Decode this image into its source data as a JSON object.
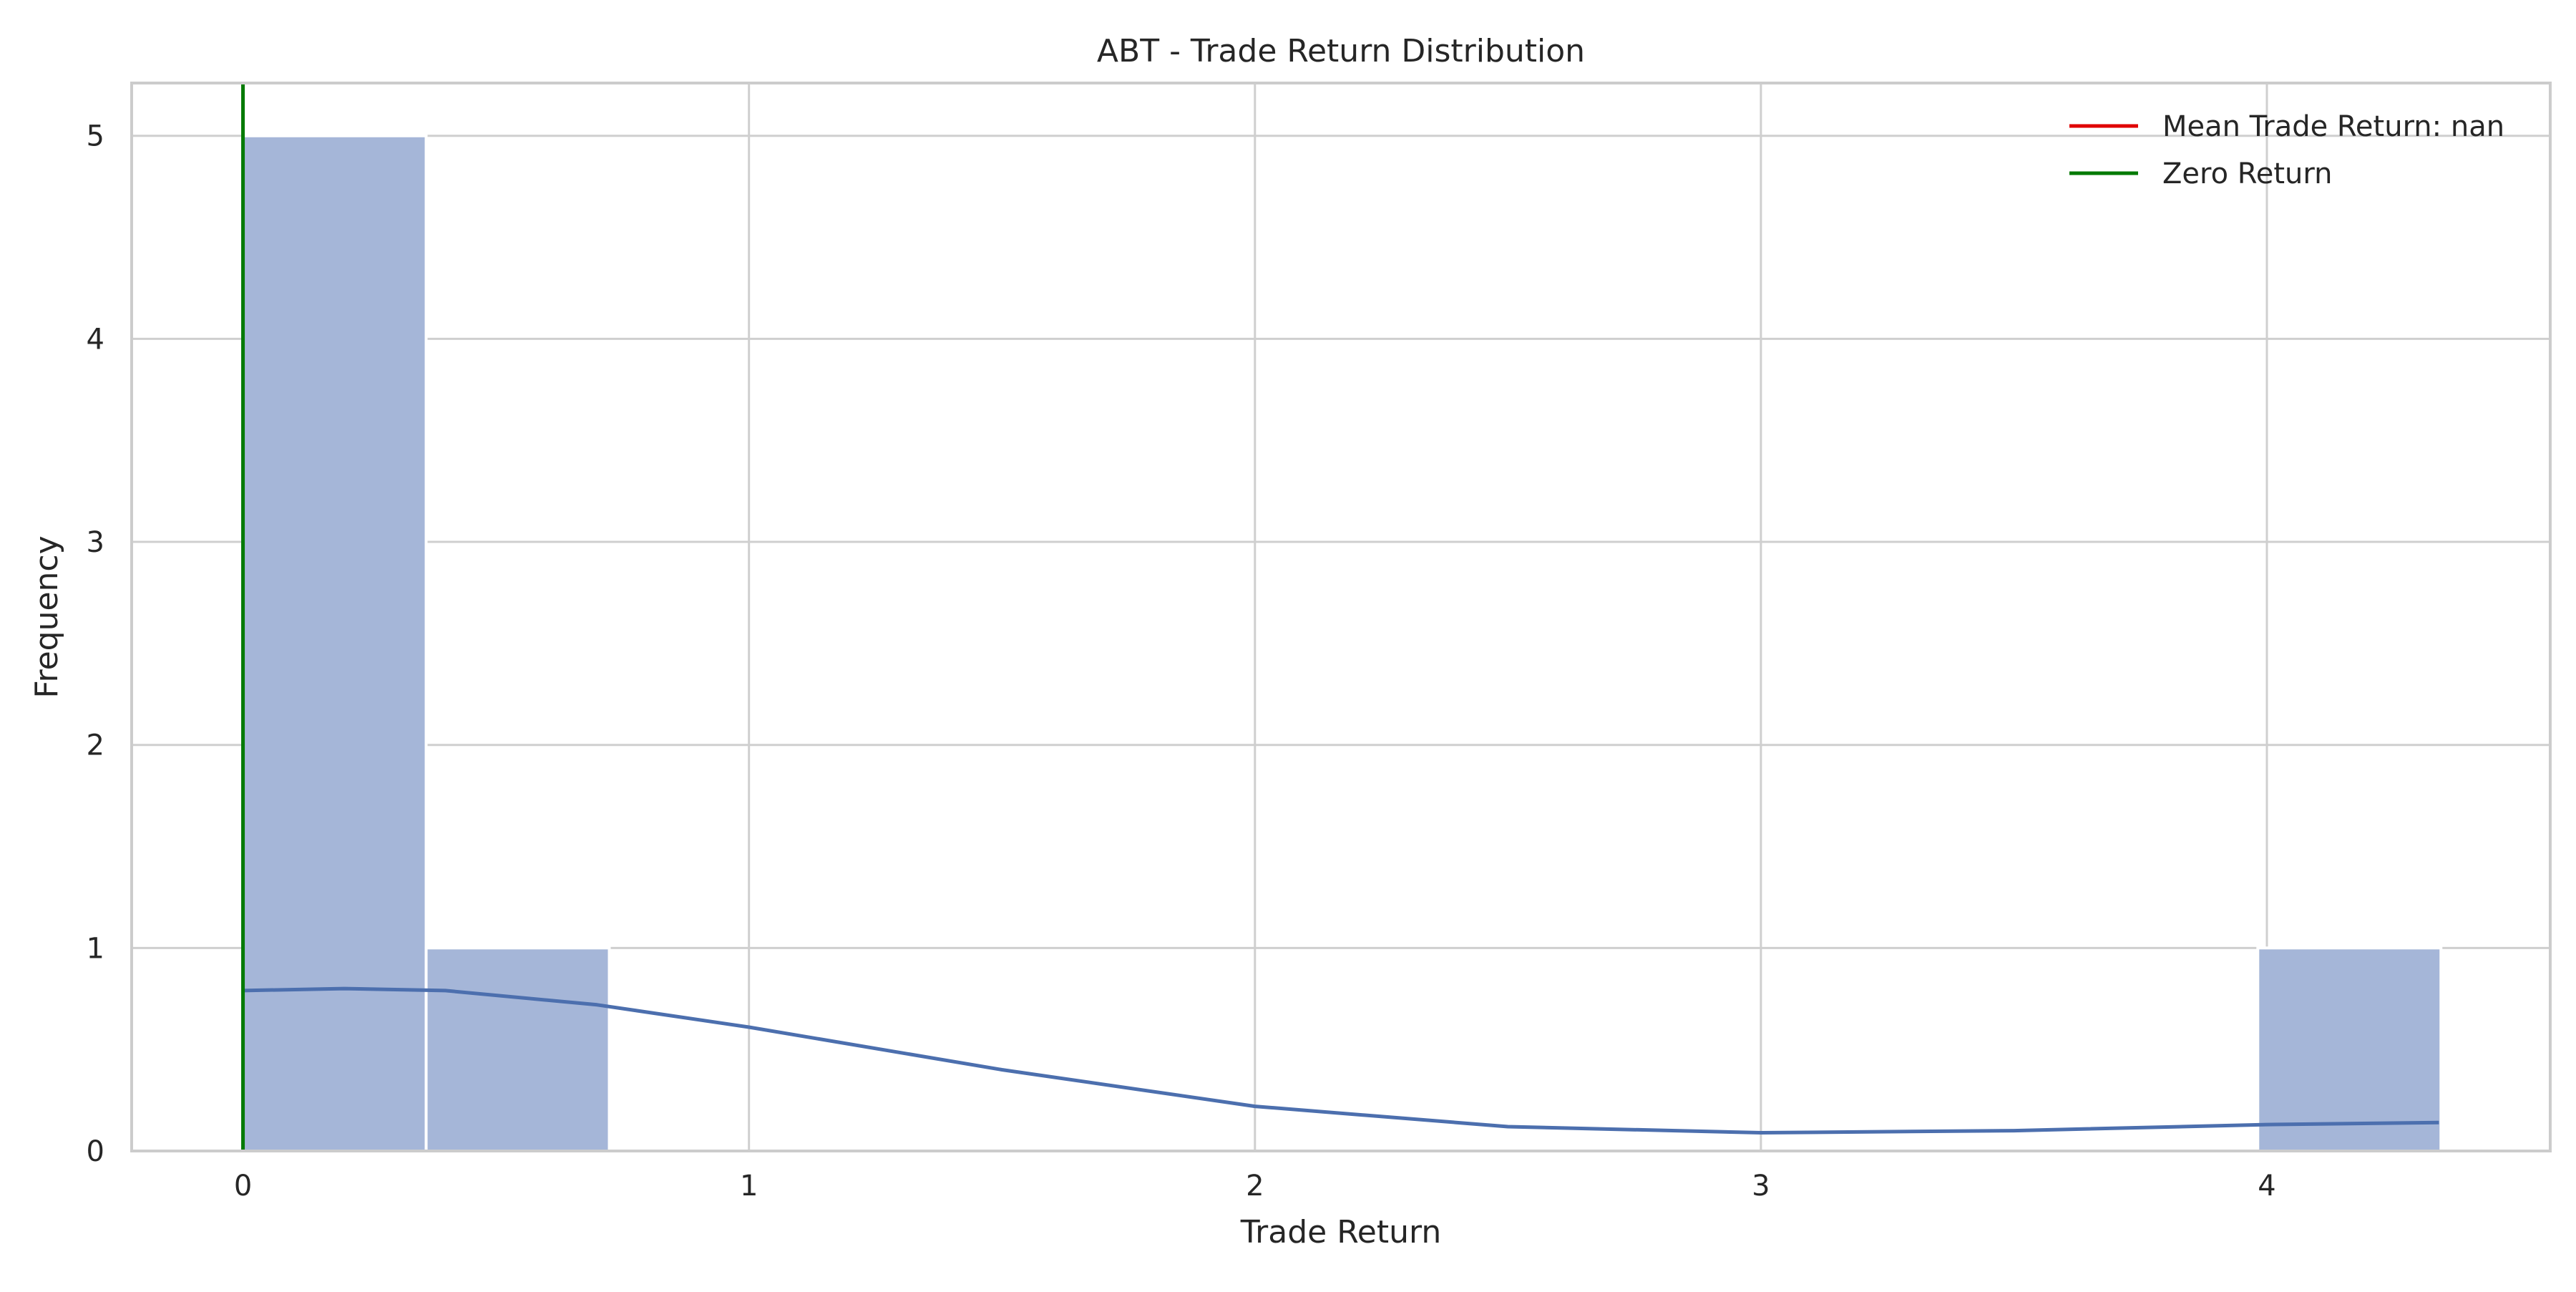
{
  "chart_data": {
    "type": "bar",
    "title": "ABT - Trade Return Distribution",
    "xlabel": "Trade Return",
    "ylabel": "Frequency",
    "xlim": [
      -0.22,
      4.56
    ],
    "ylim": [
      0,
      5.26
    ],
    "xticks": [
      0,
      1,
      2,
      3,
      4
    ],
    "yticks": [
      0,
      1,
      2,
      3,
      4,
      5
    ],
    "grid": true,
    "legend_position": "top-right",
    "bins": [
      {
        "start": 0.0,
        "end": 0.362,
        "count": 5
      },
      {
        "start": 0.362,
        "end": 0.724,
        "count": 1
      },
      {
        "start": 0.724,
        "end": 1.086,
        "count": 0
      },
      {
        "start": 1.086,
        "end": 1.448,
        "count": 0
      },
      {
        "start": 1.448,
        "end": 1.81,
        "count": 0
      },
      {
        "start": 1.81,
        "end": 2.172,
        "count": 0
      },
      {
        "start": 2.172,
        "end": 2.534,
        "count": 0
      },
      {
        "start": 2.534,
        "end": 2.896,
        "count": 0
      },
      {
        "start": 2.896,
        "end": 3.258,
        "count": 0
      },
      {
        "start": 3.258,
        "end": 3.62,
        "count": 0
      },
      {
        "start": 3.62,
        "end": 3.982,
        "count": 0
      },
      {
        "start": 3.982,
        "end": 4.344,
        "count": 1
      }
    ],
    "kde": {
      "x": [
        0.0,
        0.2,
        0.4,
        0.7,
        1.0,
        1.5,
        2.0,
        2.5,
        3.0,
        3.5,
        4.0,
        4.34
      ],
      "y": [
        0.79,
        0.8,
        0.79,
        0.72,
        0.61,
        0.4,
        0.22,
        0.12,
        0.09,
        0.1,
        0.13,
        0.14
      ]
    },
    "lines": [
      {
        "name": "Mean Trade Return: nan",
        "color": "#e00000",
        "value": null
      },
      {
        "name": "Zero Return",
        "color": "#007a00",
        "value": 0
      }
    ],
    "colors": {
      "bar": "#a5b6d8",
      "kde": "#4c6fae",
      "grid": "#cfcfcf",
      "frame": "#cccccc"
    }
  }
}
